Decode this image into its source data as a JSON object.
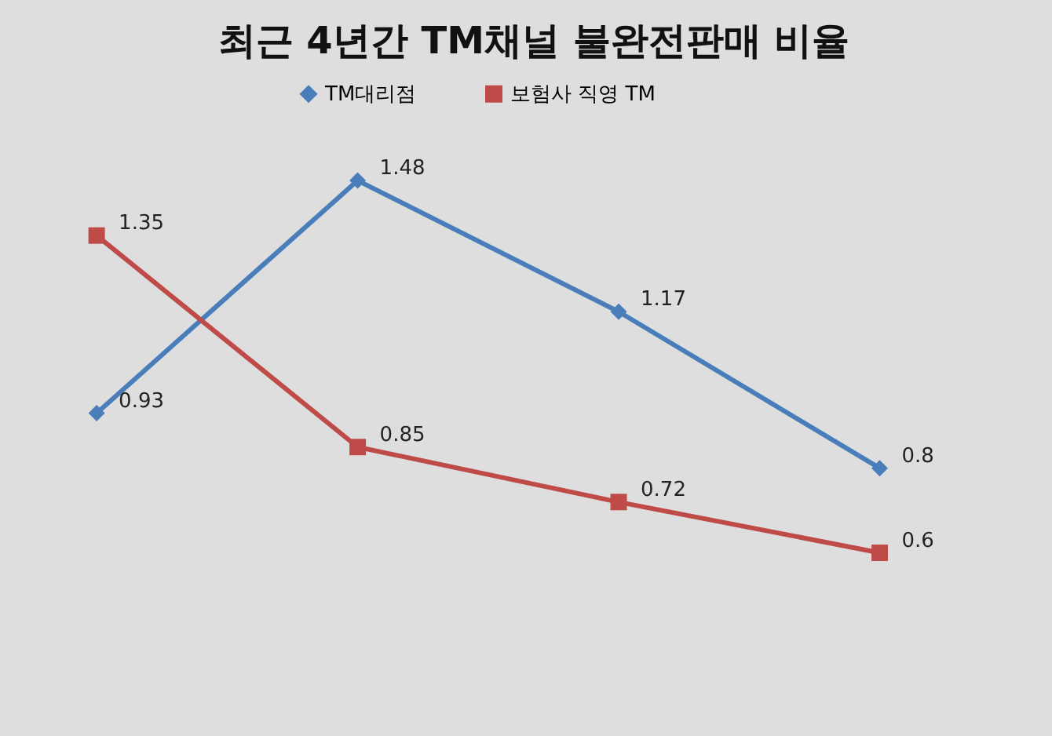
{
  "chart_data": {
    "type": "line",
    "title": "최근 4년간 TM채널 불완전판매 비율",
    "categories": [
      null,
      null,
      null,
      null
    ],
    "series": [
      {
        "name": "TM대리점",
        "color": "#4a7ebb",
        "marker": "diamond",
        "values": [
          0.93,
          1.48,
          1.17,
          0.8
        ]
      },
      {
        "name": "보험사 직영 TM",
        "color": "#be4b48",
        "marker": "square",
        "values": [
          1.35,
          0.85,
          0.72,
          0.6
        ]
      }
    ],
    "data_labels": true,
    "legend": "top",
    "line_style": "solid"
  }
}
